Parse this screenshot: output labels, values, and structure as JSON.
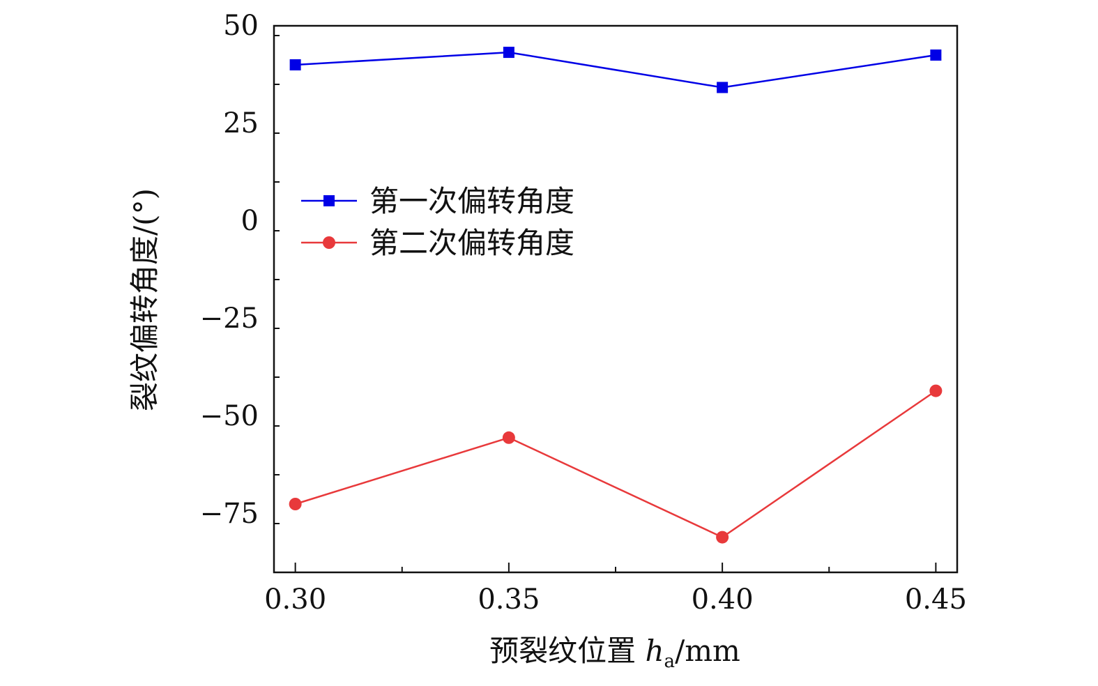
{
  "chart_data": {
    "type": "line",
    "x_label_prefix": "预裂纹位置 ",
    "x_label_var": "h",
    "x_label_sub": "a",
    "x_label_suffix": "/mm",
    "y_label": "裂纹偏转角度/(°)",
    "x": [
      0.3,
      0.35,
      0.4,
      0.45
    ],
    "x_tick_labels": [
      "0.30",
      "0.35",
      "0.40",
      "0.45"
    ],
    "xlim": [
      0.295,
      0.455
    ],
    "ylim": [
      -90,
      50
    ],
    "y_ticks": [
      50,
      25,
      0,
      -25,
      -50,
      -75
    ],
    "y_tick_labels": [
      "50",
      "25",
      "0",
      "−25",
      "−50",
      "−75"
    ],
    "grid": false,
    "legend_position": "upper-left",
    "series": [
      {
        "name": "第一次偏转角度",
        "color": "#0000e6",
        "marker": "square",
        "values": [
          40.0,
          43.2,
          34.2,
          42.5
        ]
      },
      {
        "name": "第二次偏转角度",
        "color": "#e8393b",
        "marker": "circle",
        "values": [
          -72.5,
          -55.5,
          -81.0,
          -43.5
        ]
      }
    ]
  }
}
